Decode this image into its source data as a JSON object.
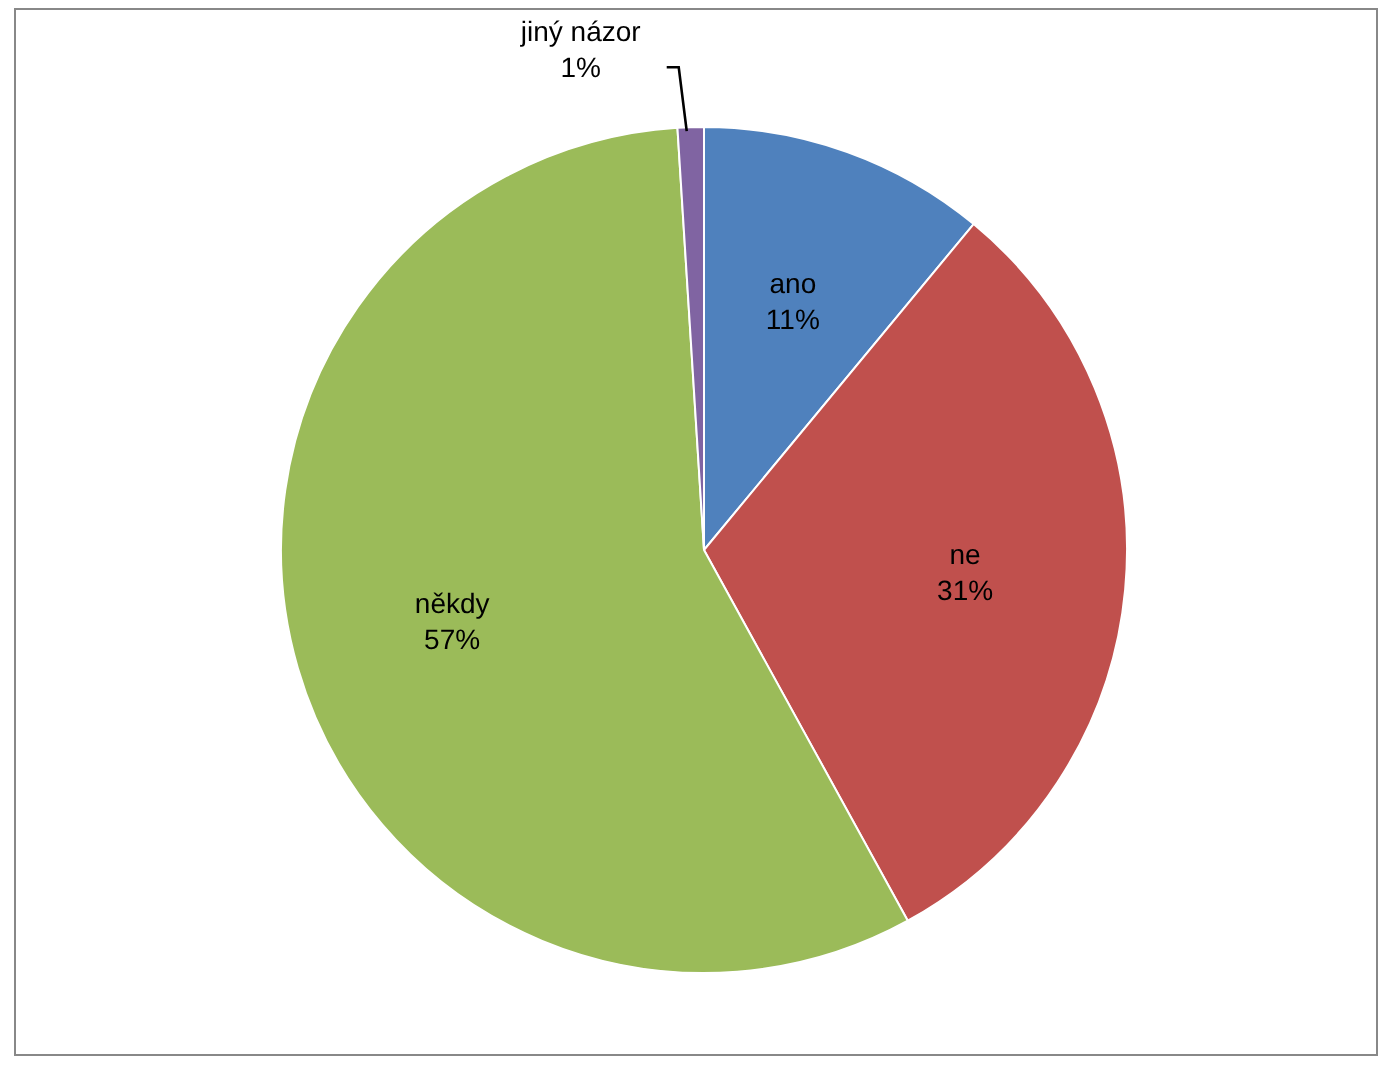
{
  "chart_data": {
    "type": "pie",
    "categories": [
      "ano",
      "ne",
      "někdy",
      "jiný názor"
    ],
    "values": [
      11,
      31,
      57,
      1
    ],
    "colors": [
      "#4f81bd",
      "#c0504d",
      "#9bbb59",
      "#8064a2"
    ],
    "value_labels": [
      "11%",
      "31%",
      "57%",
      "1%"
    ],
    "legend": false
  }
}
